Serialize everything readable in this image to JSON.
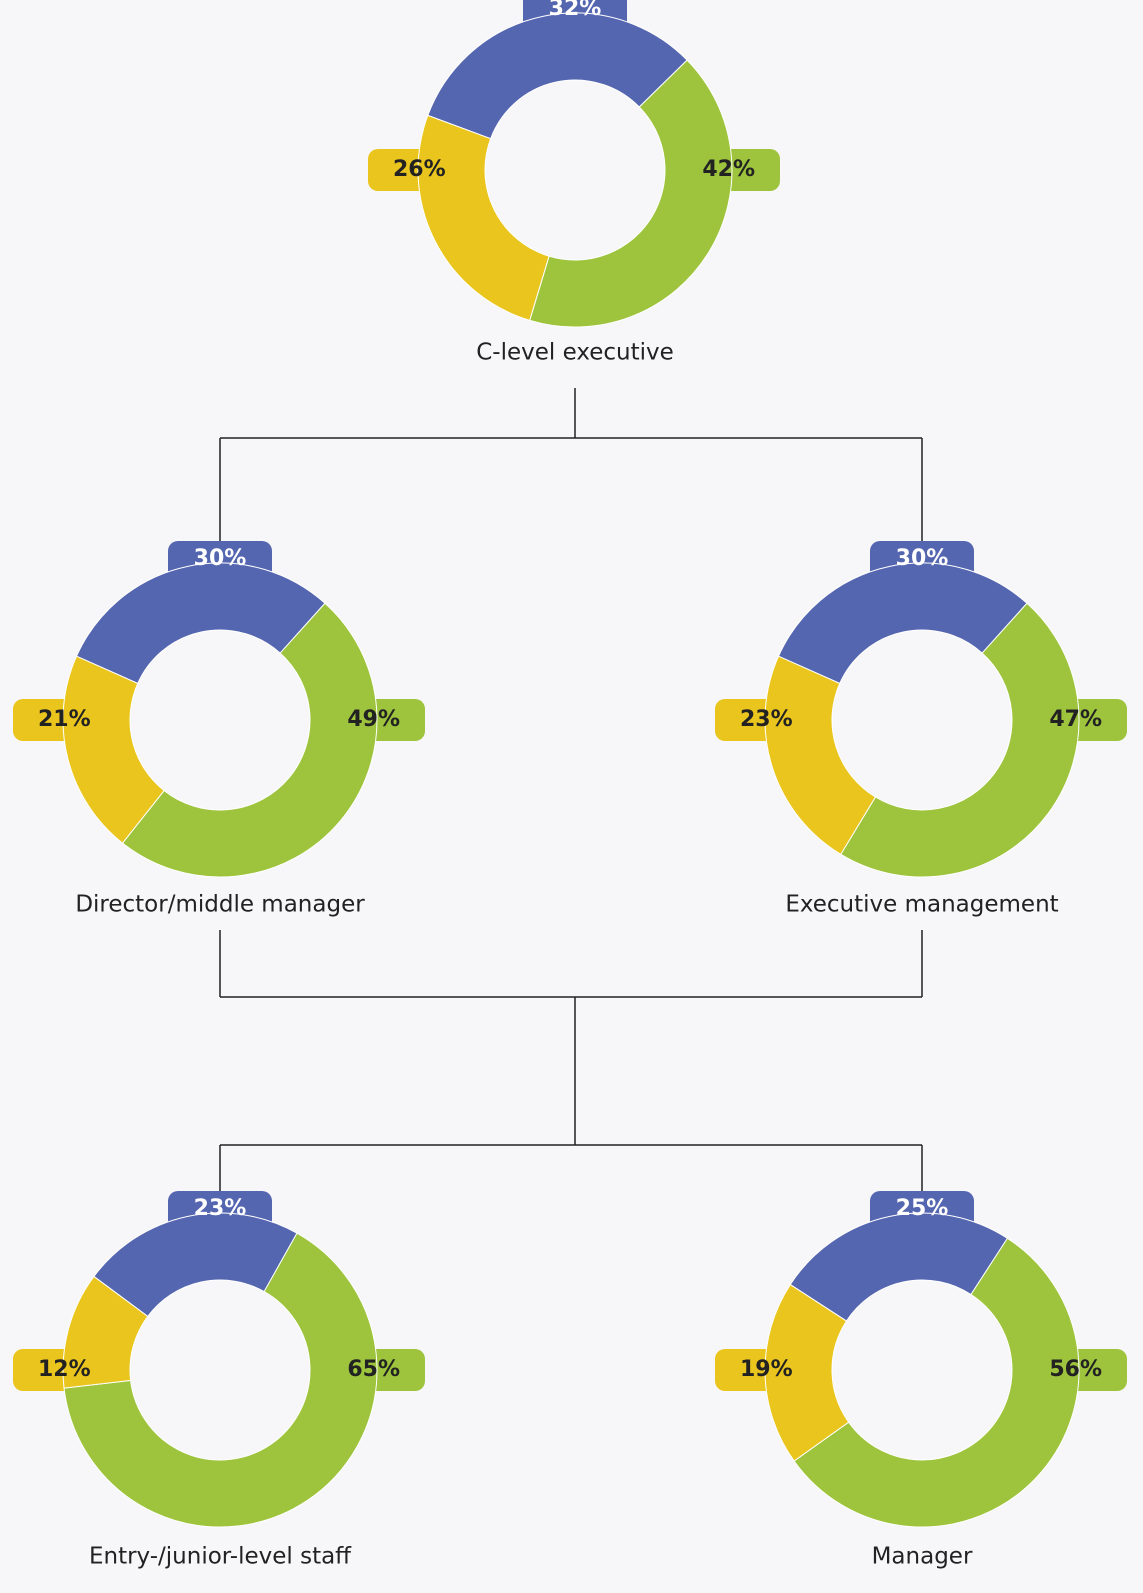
{
  "chart_data": [
    {
      "type": "donut",
      "title": "C-level executive",
      "values": [
        32,
        42,
        26
      ],
      "value_labels": [
        "32%",
        "42%",
        "26%"
      ],
      "colors": [
        "#5566b0",
        "#9dc43c",
        "#eac51e"
      ]
    },
    {
      "type": "donut",
      "title": "Director/middle manager",
      "values": [
        30,
        49,
        21
      ],
      "value_labels": [
        "30%",
        "49%",
        "21%"
      ],
      "colors": [
        "#5566b0",
        "#9dc43c",
        "#eac51e"
      ]
    },
    {
      "type": "donut",
      "title": "Executive management",
      "values": [
        30,
        47,
        23
      ],
      "value_labels": [
        "30%",
        "47%",
        "23%"
      ],
      "colors": [
        "#5566b0",
        "#9dc43c",
        "#eac51e"
      ]
    },
    {
      "type": "donut",
      "title": "Entry-/junior-level staff",
      "values": [
        23,
        65,
        12
      ],
      "value_labels": [
        "23%",
        "65%",
        "12%"
      ],
      "colors": [
        "#5566b0",
        "#9dc43c",
        "#eac51e"
      ]
    },
    {
      "type": "donut",
      "title": "Manager",
      "values": [
        25,
        56,
        19
      ],
      "value_labels": [
        "25%",
        "56%",
        "19%"
      ],
      "colors": [
        "#5566b0",
        "#9dc43c",
        "#eac51e"
      ]
    }
  ]
}
